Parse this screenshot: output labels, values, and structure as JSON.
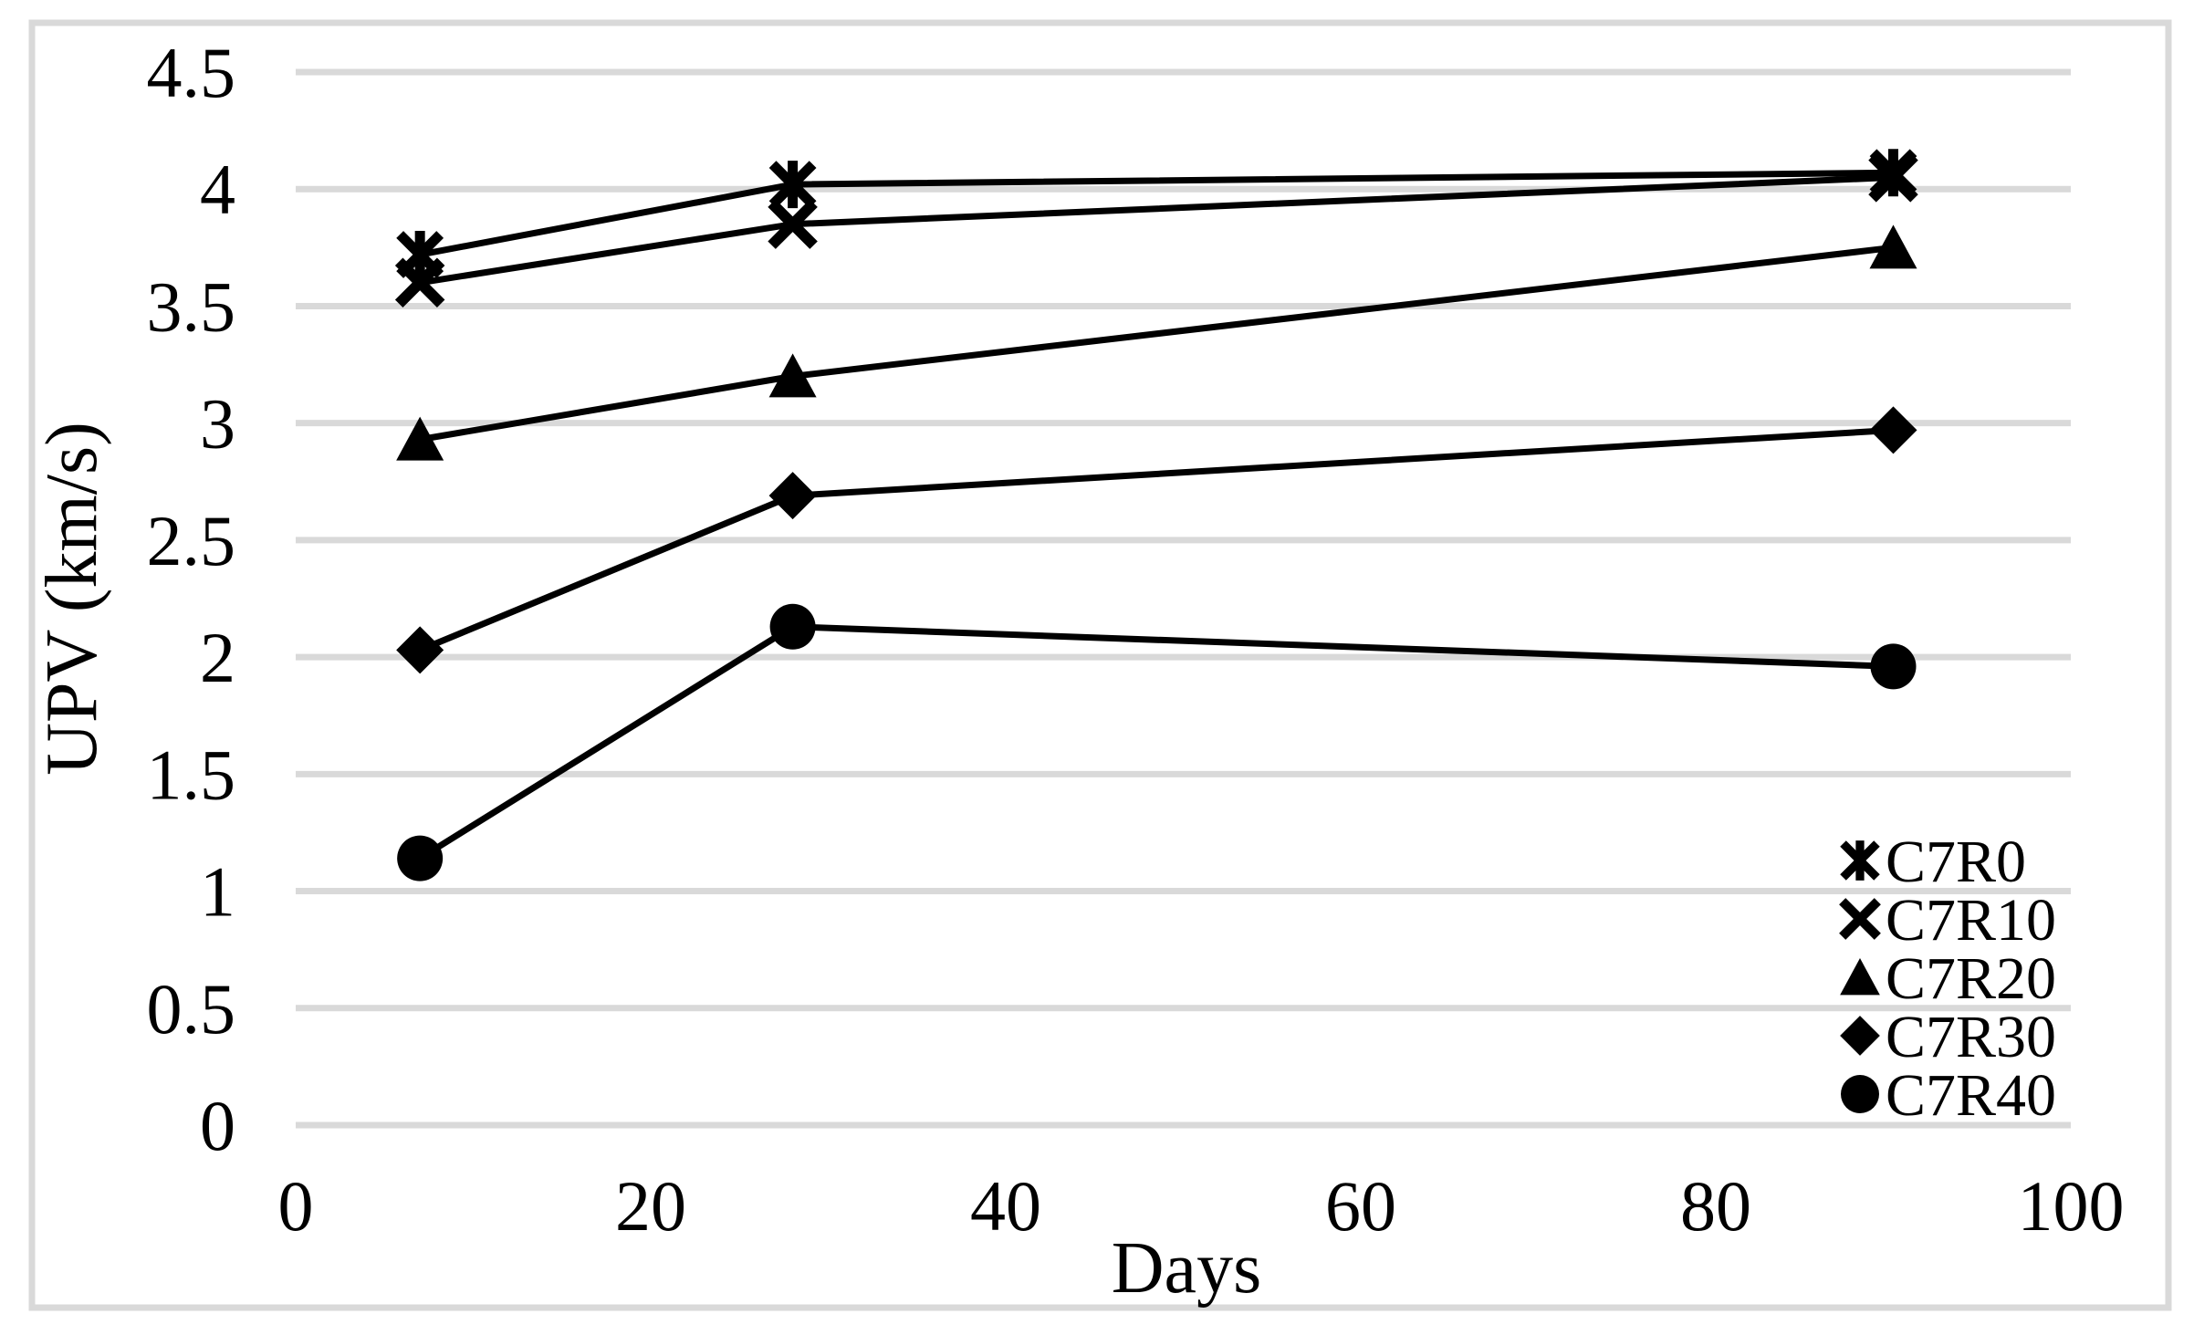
{
  "chart_data": {
    "type": "line",
    "title": "",
    "xlabel": "Days",
    "ylabel": "UPV (km/s)",
    "xlim": [
      0,
      100
    ],
    "ylim": [
      0,
      4.5
    ],
    "x_ticks": [
      0,
      20,
      40,
      60,
      80,
      100
    ],
    "x_tick_labels": [
      "0",
      "20",
      "40",
      "60",
      "80",
      "100"
    ],
    "y_ticks": [
      0,
      0.5,
      1,
      1.5,
      2,
      2.5,
      3,
      3.5,
      4,
      4.5
    ],
    "y_tick_labels": [
      "0",
      "0.5",
      "1",
      "1.5",
      "2",
      "2.5",
      "3",
      "3.5",
      "4",
      "4.5"
    ],
    "grid": "horizontal-only",
    "legend_position": "inside-bottom-right",
    "x": [
      7,
      28,
      90
    ],
    "series": [
      {
        "name": "C7R0",
        "marker": "asterisk",
        "values": [
          3.72,
          4.02,
          4.07
        ]
      },
      {
        "name": "C7R10",
        "marker": "x",
        "values": [
          3.6,
          3.85,
          4.05
        ]
      },
      {
        "name": "C7R20",
        "marker": "triangle",
        "values": [
          2.93,
          3.2,
          3.75
        ]
      },
      {
        "name": "C7R30",
        "marker": "diamond",
        "values": [
          2.03,
          2.69,
          2.97
        ]
      },
      {
        "name": "C7R40",
        "marker": "circle",
        "values": [
          1.14,
          2.13,
          1.96
        ]
      }
    ],
    "colors": {
      "series": "#000000",
      "gridline": "#d9d9d9",
      "chart_border": "#d9d9d9",
      "background": "#ffffff",
      "text": "#000000"
    }
  }
}
